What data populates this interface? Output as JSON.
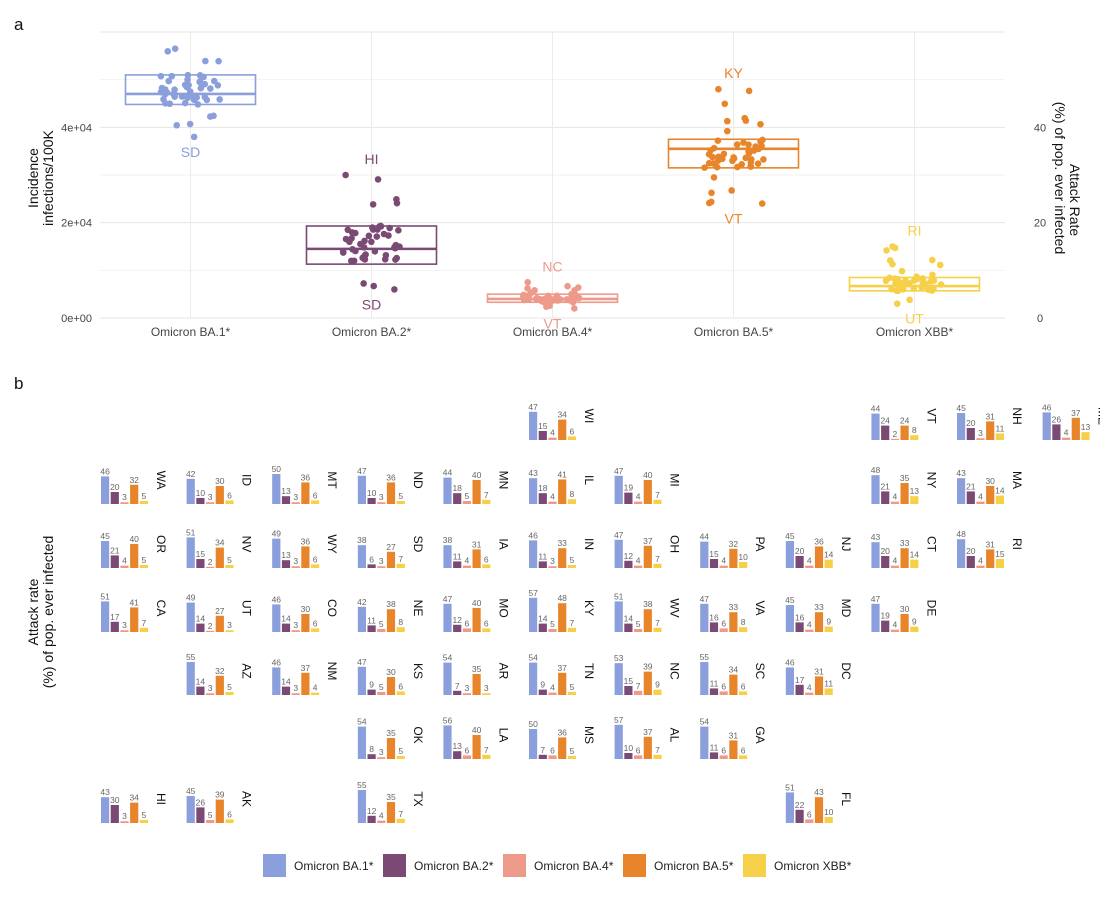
{
  "panel_labels": {
    "a": "a",
    "b": "b"
  },
  "colors": {
    "Omicron BA.1*": "#8A9FDB",
    "Omicron BA.2*": "#7A4A75",
    "Omicron BA.4*": "#EE9A8B",
    "Omicron BA.5*": "#E8852A",
    "Omicron XBB*": "#F7D04A"
  },
  "chart_data": [
    {
      "type": "box-jitter",
      "panel": "a",
      "ylabel": "Incidence\ninfections/100K",
      "ylabel_right": "Attack Rate\n(%) of pop. ever infected",
      "ylim": [
        0,
        60000
      ],
      "y_ticks": [
        "0e+00",
        "2e+04",
        "4e+04"
      ],
      "y_tick_values": [
        0,
        20000,
        40000
      ],
      "y2_ticks": [
        "0",
        "20",
        "40"
      ],
      "y2_tick_values": [
        0,
        20,
        40
      ],
      "grid": true,
      "categories": [
        "Omicron BA.1*",
        "Omicron BA.2*",
        "Omicron BA.4*",
        "Omicron BA.5*",
        "Omicron XBB*"
      ],
      "boxes": [
        {
          "category": "Omicron BA.1*",
          "q1": 44800,
          "median": 47000,
          "q3": 51000,
          "max_label": "",
          "min_label": "SD",
          "max_value": null,
          "min_value": 38000
        },
        {
          "category": "Omicron BA.2*",
          "q1": 11300,
          "median": 14500,
          "q3": 19300,
          "max_label": "HI",
          "min_label": "SD",
          "max_value": 30000,
          "min_value": 6000
        },
        {
          "category": "Omicron BA.4*",
          "q1": 3300,
          "median": 4000,
          "q3": 5000,
          "max_label": "NC",
          "min_label": "VT",
          "max_value": 7500,
          "min_value": 2000
        },
        {
          "category": "Omicron BA.5*",
          "q1": 31500,
          "median": 35500,
          "q3": 37500,
          "max_label": "KY",
          "min_label": "VT",
          "max_value": 48000,
          "min_value": 24000
        },
        {
          "category": "Omicron XBB*",
          "q1": 5700,
          "median": 6700,
          "q3": 8500,
          "max_label": "RI",
          "min_label": "UT",
          "max_value": 15000,
          "min_value": 3000
        }
      ]
    },
    {
      "type": "bar",
      "panel": "b",
      "ylabel": "Attack rate\n(%) of pop. ever infected",
      "series_names": [
        "Omicron BA.1*",
        "Omicron BA.2*",
        "Omicron BA.4*",
        "Omicron BA.5*",
        "Omicron XBB*"
      ],
      "legend_position": "bottom",
      "states": [
        {
          "state": "WI",
          "row": 0,
          "col": 5,
          "values": [
            47,
            15,
            4,
            34,
            6
          ]
        },
        {
          "state": "VT",
          "row": 0,
          "col": 9,
          "values": [
            44,
            24,
            2,
            24,
            8
          ]
        },
        {
          "state": "NH",
          "row": 0,
          "col": 10,
          "values": [
            45,
            20,
            3,
            31,
            11
          ]
        },
        {
          "state": "ME",
          "row": 0,
          "col": 11,
          "values": [
            46,
            26,
            4,
            37,
            13
          ]
        },
        {
          "state": "WA",
          "row": 1,
          "col": 0,
          "values": [
            46,
            20,
            3,
            32,
            5
          ]
        },
        {
          "state": "ID",
          "row": 1,
          "col": 1,
          "values": [
            42,
            10,
            3,
            30,
            6
          ]
        },
        {
          "state": "MT",
          "row": 1,
          "col": 2,
          "values": [
            50,
            13,
            3,
            36,
            6
          ]
        },
        {
          "state": "ND",
          "row": 1,
          "col": 3,
          "values": [
            47,
            10,
            3,
            36,
            5
          ]
        },
        {
          "state": "MN",
          "row": 1,
          "col": 4,
          "values": [
            44,
            18,
            5,
            40,
            7
          ]
        },
        {
          "state": "IL",
          "row": 1,
          "col": 5,
          "values": [
            43,
            18,
            4,
            41,
            8
          ]
        },
        {
          "state": "MI",
          "row": 1,
          "col": 6,
          "values": [
            47,
            19,
            4,
            40,
            7
          ]
        },
        {
          "state": "NY",
          "row": 1,
          "col": 9,
          "values": [
            48,
            21,
            4,
            35,
            13
          ]
        },
        {
          "state": "MA",
          "row": 1,
          "col": 10,
          "values": [
            43,
            21,
            4,
            30,
            14
          ]
        },
        {
          "state": "OR",
          "row": 2,
          "col": 0,
          "values": [
            45,
            21,
            4,
            40,
            5
          ]
        },
        {
          "state": "NV",
          "row": 2,
          "col": 1,
          "values": [
            51,
            15,
            2,
            34,
            5
          ]
        },
        {
          "state": "WY",
          "row": 2,
          "col": 2,
          "values": [
            49,
            13,
            3,
            36,
            6
          ]
        },
        {
          "state": "SD",
          "row": 2,
          "col": 3,
          "values": [
            38,
            6,
            3,
            27,
            7
          ]
        },
        {
          "state": "IA",
          "row": 2,
          "col": 4,
          "values": [
            38,
            11,
            4,
            31,
            6
          ]
        },
        {
          "state": "IN",
          "row": 2,
          "col": 5,
          "values": [
            46,
            11,
            3,
            33,
            5
          ]
        },
        {
          "state": "OH",
          "row": 2,
          "col": 6,
          "values": [
            47,
            12,
            4,
            37,
            7
          ]
        },
        {
          "state": "PA",
          "row": 2,
          "col": 7,
          "values": [
            44,
            15,
            4,
            32,
            10
          ]
        },
        {
          "state": "NJ",
          "row": 2,
          "col": 8,
          "values": [
            45,
            20,
            4,
            36,
            14
          ]
        },
        {
          "state": "CT",
          "row": 2,
          "col": 9,
          "values": [
            43,
            20,
            4,
            33,
            14
          ]
        },
        {
          "state": "RI",
          "row": 2,
          "col": 10,
          "values": [
            48,
            20,
            4,
            31,
            15
          ]
        },
        {
          "state": "CA",
          "row": 3,
          "col": 0,
          "values": [
            51,
            17,
            3,
            41,
            7
          ]
        },
        {
          "state": "UT",
          "row": 3,
          "col": 1,
          "values": [
            49,
            14,
            2,
            27,
            3
          ]
        },
        {
          "state": "CO",
          "row": 3,
          "col": 2,
          "values": [
            46,
            14,
            3,
            30,
            6
          ]
        },
        {
          "state": "NE",
          "row": 3,
          "col": 3,
          "values": [
            42,
            11,
            5,
            38,
            8
          ]
        },
        {
          "state": "MO",
          "row": 3,
          "col": 4,
          "values": [
            47,
            12,
            6,
            40,
            6
          ]
        },
        {
          "state": "KY",
          "row": 3,
          "col": 5,
          "values": [
            57,
            14,
            5,
            48,
            7
          ]
        },
        {
          "state": "WV",
          "row": 3,
          "col": 6,
          "values": [
            51,
            14,
            5,
            38,
            7
          ]
        },
        {
          "state": "VA",
          "row": 3,
          "col": 7,
          "values": [
            47,
            16,
            6,
            33,
            8
          ]
        },
        {
          "state": "MD",
          "row": 3,
          "col": 8,
          "values": [
            45,
            16,
            4,
            33,
            9
          ]
        },
        {
          "state": "DE",
          "row": 3,
          "col": 9,
          "values": [
            47,
            19,
            4,
            30,
            9
          ]
        },
        {
          "state": "AZ",
          "row": 4,
          "col": 1,
          "values": [
            55,
            14,
            3,
            32,
            5
          ]
        },
        {
          "state": "NM",
          "row": 4,
          "col": 2,
          "values": [
            46,
            14,
            3,
            37,
            4
          ]
        },
        {
          "state": "KS",
          "row": 4,
          "col": 3,
          "values": [
            47,
            9,
            5,
            30,
            6
          ]
        },
        {
          "state": "AR",
          "row": 4,
          "col": 4,
          "values": [
            54,
            7,
            3,
            35,
            3
          ]
        },
        {
          "state": "TN",
          "row": 4,
          "col": 5,
          "values": [
            54,
            9,
            4,
            37,
            5
          ]
        },
        {
          "state": "NC",
          "row": 4,
          "col": 6,
          "values": [
            53,
            15,
            7,
            39,
            9
          ]
        },
        {
          "state": "SC",
          "row": 4,
          "col": 7,
          "values": [
            55,
            11,
            6,
            34,
            6
          ]
        },
        {
          "state": "DC",
          "row": 4,
          "col": 8,
          "values": [
            46,
            17,
            4,
            31,
            11
          ]
        },
        {
          "state": "OK",
          "row": 5,
          "col": 3,
          "values": [
            54,
            8,
            3,
            35,
            5
          ]
        },
        {
          "state": "LA",
          "row": 5,
          "col": 4,
          "values": [
            56,
            13,
            6,
            40,
            7
          ]
        },
        {
          "state": "MS",
          "row": 5,
          "col": 5,
          "values": [
            50,
            7,
            6,
            36,
            5
          ]
        },
        {
          "state": "AL",
          "row": 5,
          "col": 6,
          "values": [
            57,
            10,
            6,
            37,
            7
          ]
        },
        {
          "state": "GA",
          "row": 5,
          "col": 7,
          "values": [
            54,
            11,
            6,
            31,
            6
          ]
        },
        {
          "state": "HI",
          "row": 6,
          "col": 0,
          "values": [
            43,
            30,
            3,
            34,
            5
          ]
        },
        {
          "state": "AK",
          "row": 6,
          "col": 1,
          "values": [
            45,
            26,
            5,
            39,
            6
          ]
        },
        {
          "state": "TX",
          "row": 6,
          "col": 3,
          "values": [
            55,
            12,
            4,
            35,
            7
          ]
        },
        {
          "state": "FL",
          "row": 6,
          "col": 8,
          "values": [
            51,
            22,
            6,
            43,
            10
          ]
        }
      ]
    }
  ]
}
